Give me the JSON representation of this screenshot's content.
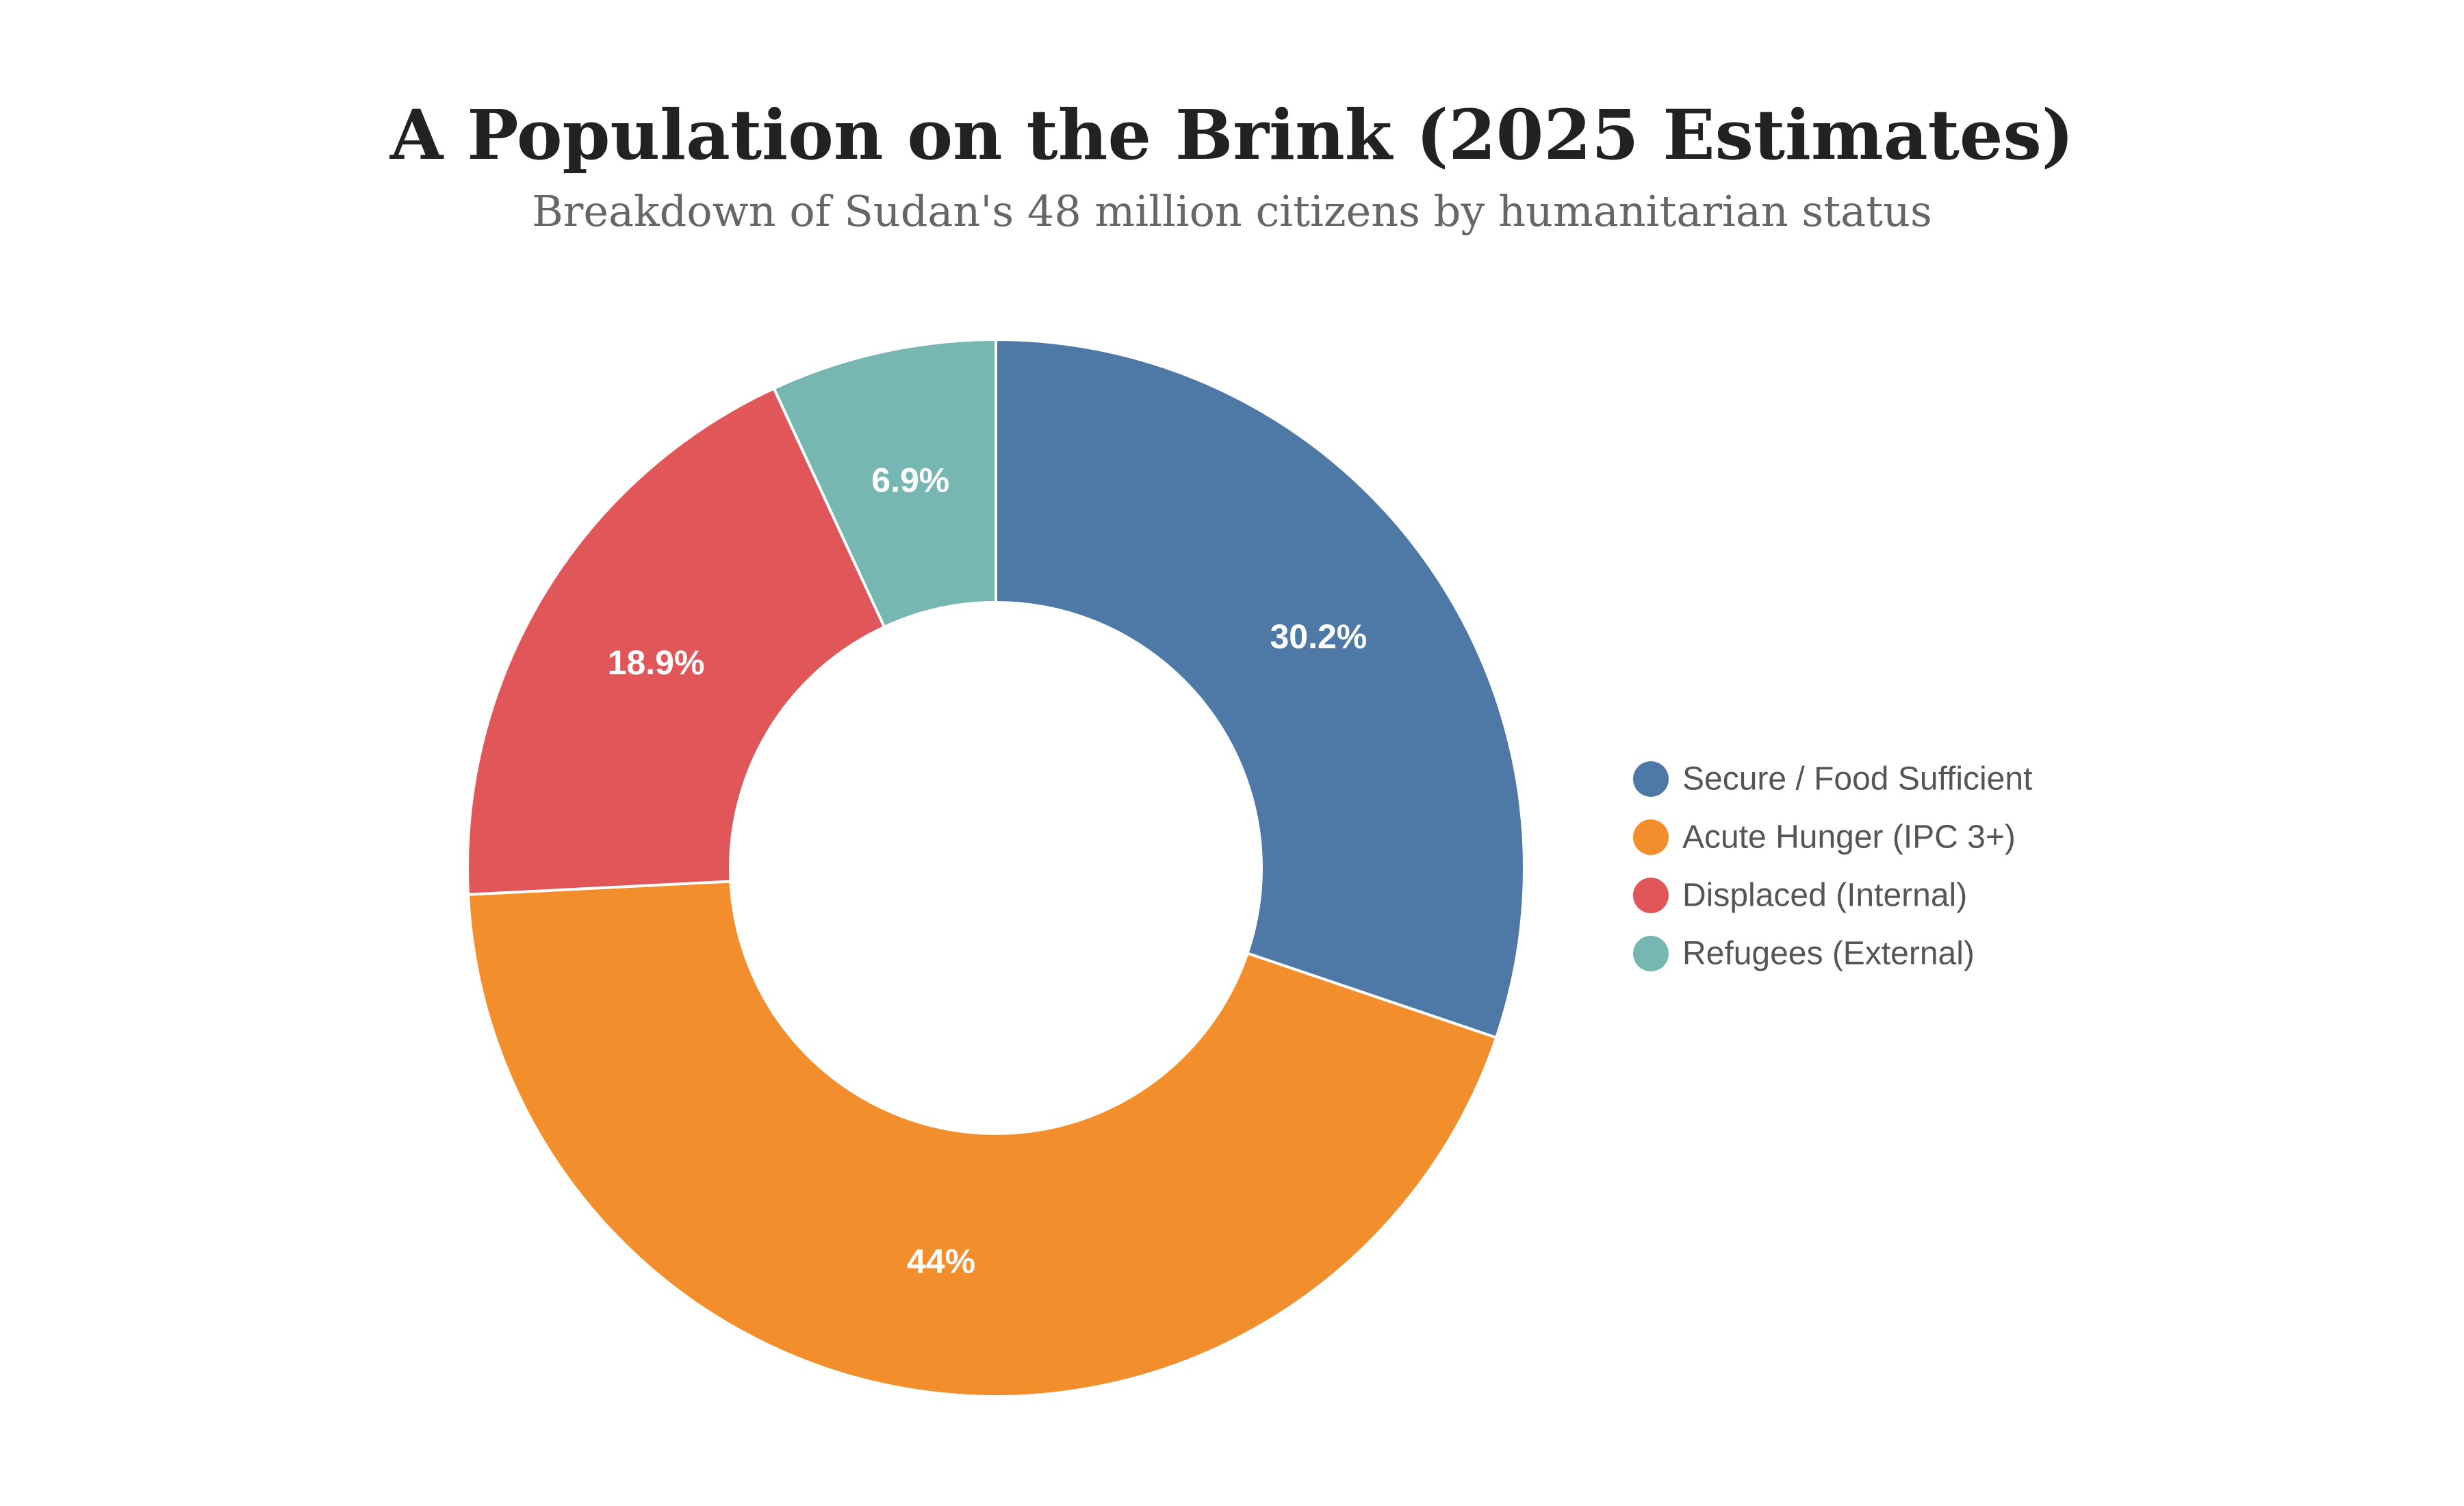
{
  "chart_data": {
    "type": "pie",
    "title": "A Population on the Brink (2025 Estimates)",
    "subtitle": "Breakdown of Sudan's 48 million citizens by humanitarian status",
    "legend_position": "right",
    "donut": true,
    "slices": [
      {
        "label": "Secure / Food Sufficient",
        "value": 30.2,
        "display": "30.2%",
        "color": "#4e79a7"
      },
      {
        "label": "Acute Hunger (IPC 3+)",
        "value": 44.0,
        "display": "44%",
        "color": "#f28e2c"
      },
      {
        "label": "Displaced (Internal)",
        "value": 18.9,
        "display": "18.9%",
        "color": "#e15759"
      },
      {
        "label": "Refugees (External)",
        "value": 6.9,
        "display": "6.9%",
        "color": "#76b7b2"
      }
    ]
  }
}
